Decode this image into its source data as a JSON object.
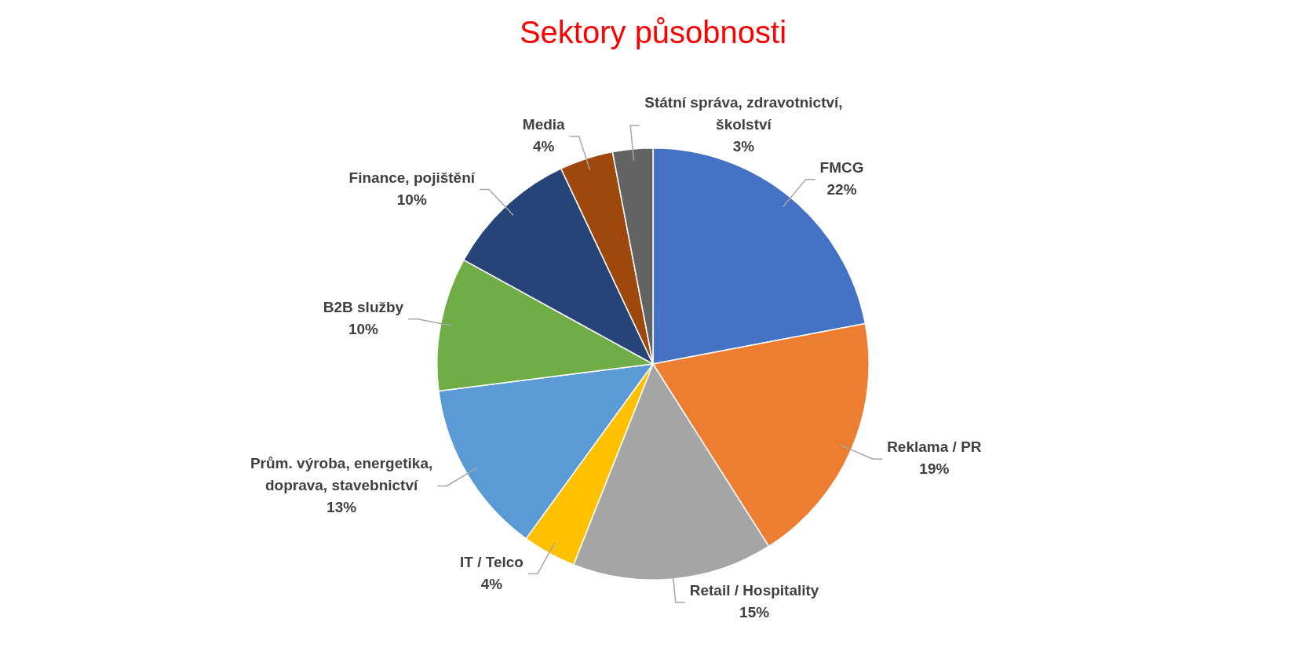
{
  "chart_data": {
    "type": "pie",
    "title": "Sektory působnosti",
    "categories": [
      "FMCG",
      "Reklama / PR",
      "Retail / Hospitality",
      "IT / Telco",
      "Prům. výroba, energetika, doprava, stavebnictví",
      "B2B služby",
      "Finance, pojištění",
      "Media",
      "Státní správa, zdravotnictví, školství"
    ],
    "values": [
      22,
      19,
      15,
      4,
      13,
      10,
      10,
      4,
      3
    ],
    "colors": [
      "#4472c4",
      "#ed7d31",
      "#a5a5a5",
      "#ffc000",
      "#5b9bd5",
      "#70ad47",
      "#264478",
      "#9e480e",
      "#636363"
    ],
    "value_labels": [
      "22%",
      "19%",
      "15%",
      "4%",
      "13%",
      "10%",
      "10%",
      "4%",
      "3%"
    ],
    "legend": false
  }
}
